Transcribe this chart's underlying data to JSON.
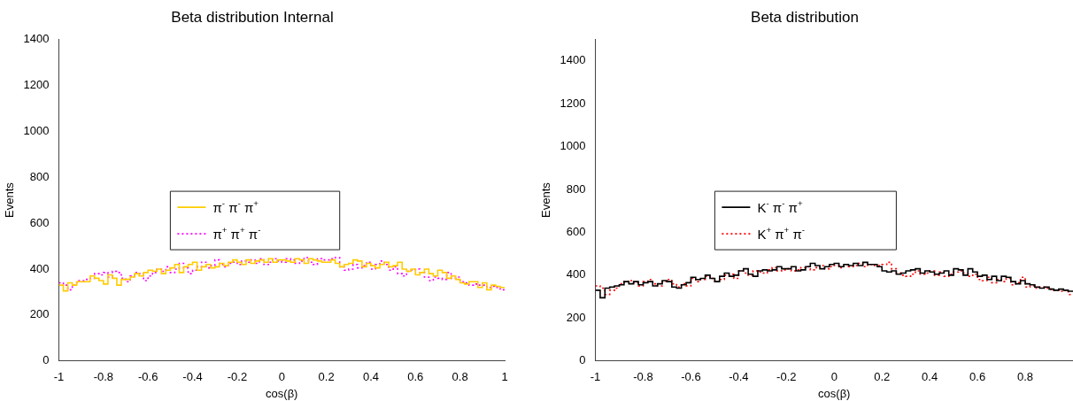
{
  "chart_data": [
    {
      "type": "histogram",
      "title": "Beta distribution Internal",
      "xlabel": "cos(β)",
      "ylabel": "Events",
      "xlim": [
        -1,
        1
      ],
      "xticks": [
        -1,
        -0.8,
        -0.6,
        -0.4,
        -0.2,
        0,
        0.2,
        0.4,
        0.6,
        0.8,
        1
      ],
      "ylim": [
        0,
        1400
      ],
      "yticks": [
        0,
        200,
        400,
        600,
        800,
        1000,
        1200,
        1400
      ],
      "grid": false,
      "legend": "center",
      "bins": [
        -1,
        -0.98,
        -0.96,
        -0.94,
        -0.92,
        -0.9,
        -0.88,
        -0.86,
        -0.84,
        -0.82,
        -0.8,
        -0.78,
        -0.76,
        -0.74,
        -0.72,
        -0.7,
        -0.68,
        -0.66,
        -0.64,
        -0.62,
        -0.6,
        -0.58,
        -0.56,
        -0.54,
        -0.52,
        -0.5,
        -0.48,
        -0.46,
        -0.44,
        -0.42,
        -0.4,
        -0.38,
        -0.36,
        -0.34,
        -0.32,
        -0.3,
        -0.28,
        -0.26,
        -0.24,
        -0.22,
        -0.2,
        -0.18,
        -0.16,
        -0.14,
        -0.12,
        -0.1,
        -0.08,
        -0.06,
        -0.04,
        -0.02,
        0,
        0.02,
        0.04,
        0.06,
        0.08,
        0.1,
        0.12,
        0.14,
        0.16,
        0.18,
        0.2,
        0.22,
        0.24,
        0.26,
        0.28,
        0.3,
        0.32,
        0.34,
        0.36,
        0.38,
        0.4,
        0.42,
        0.44,
        0.46,
        0.48,
        0.5,
        0.52,
        0.54,
        0.56,
        0.58,
        0.6,
        0.62,
        0.64,
        0.66,
        0.68,
        0.7,
        0.72,
        0.74,
        0.76,
        0.78,
        0.8,
        0.82,
        0.84,
        0.86,
        0.88,
        0.9,
        0.92,
        0.94,
        0.96,
        0.98,
        1
      ],
      "series": [
        {
          "name": "π$^{-}$ π$^{-}$ π$^{+}$",
          "color": "#ffcc00",
          "line_style": "solid",
          "values": [
            330,
            305,
            340,
            330,
            345,
            345,
            345,
            370,
            360,
            350,
            335,
            375,
            360,
            330,
            355,
            355,
            365,
            380,
            370,
            385,
            395,
            390,
            400,
            380,
            395,
            405,
            420,
            385,
            410,
            420,
            430,
            395,
            410,
            420,
            405,
            410,
            425,
            415,
            430,
            440,
            430,
            420,
            440,
            425,
            435,
            440,
            430,
            445,
            430,
            440,
            440,
            435,
            430,
            445,
            440,
            425,
            445,
            440,
            435,
            430,
            430,
            440,
            425,
            410,
            420,
            425,
            440,
            435,
            410,
            425,
            415,
            405,
            420,
            430,
            410,
            415,
            430,
            400,
            390,
            400,
            375,
            385,
            400,
            380,
            370,
            395,
            385,
            360,
            370,
            355,
            340,
            335,
            345,
            345,
            320,
            340,
            310,
            330,
            325,
            320
          ]
        },
        {
          "name": "π$^{+}$ π$^{+}$ π$^{-}$",
          "color": "#ff00ff",
          "line_style": "dotted",
          "values": [
            340,
            330,
            310,
            330,
            350,
            350,
            355,
            360,
            380,
            375,
            385,
            365,
            390,
            385,
            360,
            345,
            370,
            385,
            380,
            350,
            370,
            385,
            400,
            390,
            410,
            385,
            400,
            425,
            405,
            380,
            395,
            410,
            430,
            405,
            415,
            440,
            420,
            410,
            425,
            430,
            420,
            435,
            430,
            440,
            425,
            445,
            420,
            430,
            445,
            435,
            430,
            445,
            440,
            425,
            435,
            450,
            430,
            420,
            445,
            440,
            440,
            445,
            450,
            410,
            395,
            400,
            420,
            405,
            415,
            430,
            400,
            420,
            435,
            420,
            395,
            410,
            380,
            370,
            390,
            395,
            400,
            385,
            365,
            350,
            365,
            360,
            355,
            385,
            360,
            365,
            345,
            340,
            330,
            335,
            330,
            330,
            320,
            325,
            320,
            310
          ]
        }
      ]
    },
    {
      "type": "histogram",
      "title": "Beta distribution",
      "xlabel": "cos(β)",
      "ylabel": "Events",
      "xlim": [
        -1,
        1
      ],
      "xticks": [
        -1,
        -0.8,
        -0.6,
        -0.4,
        -0.2,
        0,
        0.2,
        0.4,
        0.6,
        0.8
      ],
      "ylim": [
        0,
        1500
      ],
      "yticks": [
        0,
        200,
        400,
        600,
        800,
        1000,
        1200,
        1400
      ],
      "grid": false,
      "legend": "center",
      "bins": [
        -1,
        -0.98,
        -0.96,
        -0.94,
        -0.92,
        -0.9,
        -0.88,
        -0.86,
        -0.84,
        -0.82,
        -0.8,
        -0.78,
        -0.76,
        -0.74,
        -0.72,
        -0.7,
        -0.68,
        -0.66,
        -0.64,
        -0.62,
        -0.6,
        -0.58,
        -0.56,
        -0.54,
        -0.52,
        -0.5,
        -0.48,
        -0.46,
        -0.44,
        -0.42,
        -0.4,
        -0.38,
        -0.36,
        -0.34,
        -0.32,
        -0.3,
        -0.28,
        -0.26,
        -0.24,
        -0.22,
        -0.2,
        -0.18,
        -0.16,
        -0.14,
        -0.12,
        -0.1,
        -0.08,
        -0.06,
        -0.04,
        -0.02,
        0,
        0.02,
        0.04,
        0.06,
        0.08,
        0.1,
        0.12,
        0.14,
        0.16,
        0.18,
        0.2,
        0.22,
        0.24,
        0.26,
        0.28,
        0.3,
        0.32,
        0.34,
        0.36,
        0.38,
        0.4,
        0.42,
        0.44,
        0.46,
        0.48,
        0.5,
        0.52,
        0.54,
        0.56,
        0.58,
        0.6,
        0.62,
        0.64,
        0.66,
        0.68,
        0.7,
        0.72,
        0.74,
        0.76,
        0.78,
        0.8,
        0.82,
        0.84,
        0.86,
        0.88,
        0.9,
        0.92,
        0.94,
        0.96,
        0.98,
        1
      ],
      "series": [
        {
          "name": "K$^{-}$ π$^{-}$ π$^{+}$",
          "color": "#000000",
          "line_style": "solid",
          "values": [
            330,
            295,
            340,
            345,
            350,
            355,
            370,
            360,
            370,
            355,
            365,
            370,
            350,
            360,
            375,
            370,
            345,
            340,
            355,
            365,
            390,
            380,
            385,
            400,
            385,
            370,
            395,
            410,
            395,
            400,
            420,
            430,
            405,
            395,
            420,
            425,
            420,
            425,
            440,
            430,
            430,
            440,
            420,
            425,
            440,
            455,
            445,
            430,
            440,
            450,
            455,
            440,
            450,
            445,
            455,
            445,
            460,
            450,
            450,
            440,
            420,
            415,
            420,
            405,
            410,
            420,
            425,
            430,
            410,
            420,
            415,
            405,
            410,
            420,
            400,
            430,
            425,
            400,
            430,
            415,
            395,
            400,
            380,
            395,
            375,
            395,
            390,
            370,
            360,
            375,
            360,
            355,
            345,
            340,
            345,
            335,
            330,
            335,
            330,
            325
          ]
        },
        {
          "name": "K$^{+}$ π$^{+}$ π$^{-}$",
          "color": "#ff0000",
          "line_style": "dotted",
          "values": [
            350,
            340,
            310,
            330,
            340,
            360,
            370,
            375,
            365,
            350,
            370,
            380,
            360,
            350,
            370,
            380,
            360,
            345,
            360,
            350,
            385,
            370,
            380,
            395,
            385,
            370,
            380,
            400,
            405,
            385,
            420,
            410,
            400,
            420,
            415,
            410,
            425,
            435,
            420,
            425,
            430,
            420,
            425,
            435,
            440,
            425,
            435,
            445,
            430,
            440,
            445,
            435,
            450,
            440,
            445,
            455,
            440,
            450,
            445,
            445,
            450,
            460,
            430,
            410,
            400,
            395,
            405,
            420,
            405,
            410,
            420,
            400,
            415,
            395,
            405,
            415,
            420,
            410,
            395,
            405,
            380,
            375,
            390,
            365,
            380,
            370,
            385,
            355,
            365,
            390,
            345,
            350,
            340,
            345,
            340,
            335,
            330,
            325,
            330,
            310
          ]
        }
      ]
    }
  ]
}
